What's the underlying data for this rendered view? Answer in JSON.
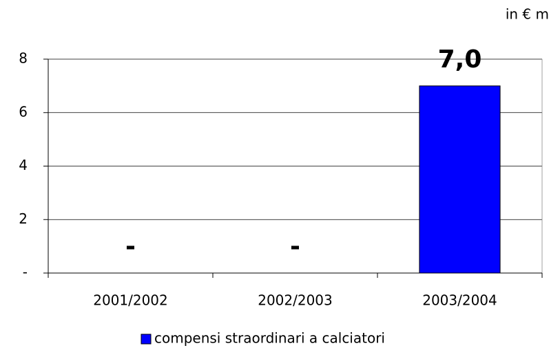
{
  "chart_data": {
    "type": "bar",
    "unit_label": "in € m",
    "categories": [
      "2001/2002",
      "2002/2003",
      "2003/2004"
    ],
    "series": [
      {
        "name": "compensi straordinari a calciatori",
        "color": "#0000ff",
        "values": [
          0,
          0,
          7
        ],
        "value_labels": [
          "-",
          "-",
          "7,0"
        ]
      }
    ],
    "ylim": [
      0,
      8
    ],
    "yticks": [
      {
        "value": 0,
        "label": "-"
      },
      2,
      4,
      6,
      8
    ],
    "grid": true,
    "legend": "bottom"
  }
}
